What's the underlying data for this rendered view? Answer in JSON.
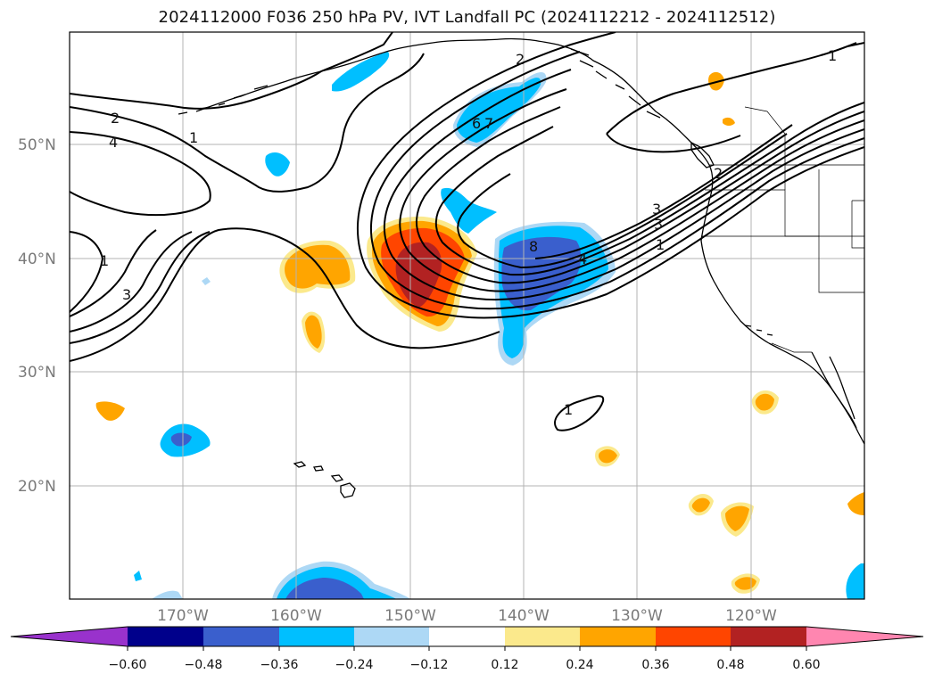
{
  "title": "2024112000 F036 250 hPa PV, IVT Landfall PC (2024112212 - 2024112512)",
  "map": {
    "lat_labels": [
      "50°N",
      "40°N",
      "30°N",
      "20°N"
    ],
    "lon_labels": [
      "170°W",
      "160°W",
      "150°W",
      "140°W",
      "130°W",
      "120°W"
    ],
    "contour_labels": [
      "2",
      "4",
      "1",
      "3",
      "6",
      "7",
      "8",
      "4",
      "3",
      "2",
      "3",
      "1",
      "2",
      "1",
      "1",
      "1"
    ]
  },
  "colorbar": {
    "ticks": [
      "−0.60",
      "−0.48",
      "−0.36",
      "−0.24",
      "−0.12",
      "0.12",
      "0.24",
      "0.36",
      "0.48",
      "0.60"
    ],
    "colors": [
      "#9932cc",
      "#00008b",
      "#3a5fcd",
      "#00bfff",
      "#add8f5",
      "#ffffff",
      "#fbe98c",
      "#ffa500",
      "#ff4500",
      "#b22222",
      "#ff86b0"
    ]
  }
}
